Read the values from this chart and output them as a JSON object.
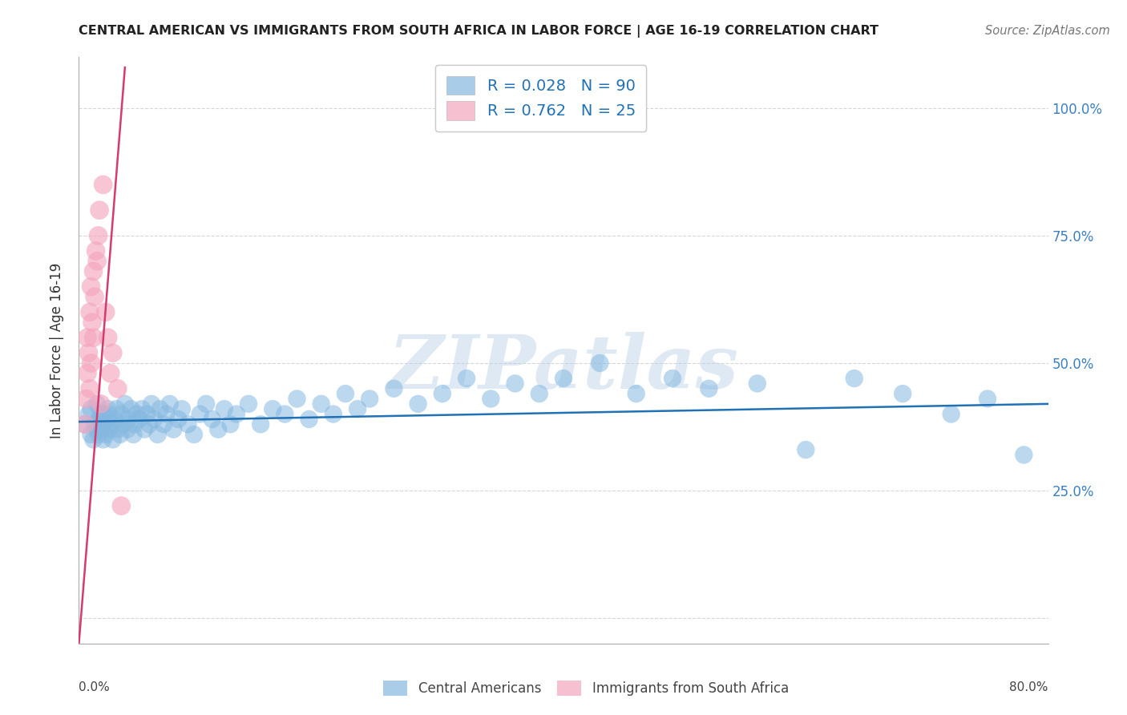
{
  "title": "CENTRAL AMERICAN VS IMMIGRANTS FROM SOUTH AFRICA IN LABOR FORCE | AGE 16-19 CORRELATION CHART",
  "source": "Source: ZipAtlas.com",
  "ylabel": "In Labor Force | Age 16-19",
  "ytick_values": [
    0.0,
    0.25,
    0.5,
    0.75,
    1.0
  ],
  "ytick_labels": [
    "",
    "25.0%",
    "50.0%",
    "75.0%",
    "100.0%"
  ],
  "xlim": [
    0.0,
    0.8
  ],
  "ylim": [
    -0.05,
    1.1
  ],
  "blue_R": "0.028",
  "blue_N": "90",
  "pink_R": "0.762",
  "pink_N": "25",
  "blue_color": "#85b8e0",
  "pink_color": "#f4a6be",
  "blue_line_color": "#2171b5",
  "pink_line_color": "#d63a6e",
  "watermark_text": "ZIPatlas",
  "background_color": "#ffffff",
  "grid_color": "#cccccc",
  "legend_label_blue": "Central Americans",
  "legend_label_pink": "Immigrants from South Africa",
  "blue_scatter_x": [
    0.005,
    0.008,
    0.01,
    0.01,
    0.012,
    0.013,
    0.015,
    0.015,
    0.016,
    0.017,
    0.018,
    0.018,
    0.019,
    0.02,
    0.02,
    0.021,
    0.022,
    0.023,
    0.024,
    0.025,
    0.025,
    0.027,
    0.028,
    0.03,
    0.031,
    0.032,
    0.034,
    0.035,
    0.036,
    0.038,
    0.04,
    0.041,
    0.043,
    0.045,
    0.046,
    0.048,
    0.05,
    0.052,
    0.054,
    0.056,
    0.058,
    0.06,
    0.062,
    0.065,
    0.067,
    0.07,
    0.072,
    0.075,
    0.078,
    0.082,
    0.085,
    0.09,
    0.095,
    0.1,
    0.105,
    0.11,
    0.115,
    0.12,
    0.125,
    0.13,
    0.14,
    0.15,
    0.16,
    0.17,
    0.18,
    0.19,
    0.2,
    0.21,
    0.22,
    0.23,
    0.24,
    0.26,
    0.28,
    0.3,
    0.32,
    0.34,
    0.36,
    0.38,
    0.4,
    0.43,
    0.46,
    0.49,
    0.52,
    0.56,
    0.6,
    0.64,
    0.68,
    0.72,
    0.75,
    0.78
  ],
  "blue_scatter_y": [
    0.38,
    0.4,
    0.36,
    0.41,
    0.35,
    0.38,
    0.37,
    0.42,
    0.36,
    0.39,
    0.38,
    0.4,
    0.37,
    0.35,
    0.4,
    0.38,
    0.36,
    0.39,
    0.41,
    0.37,
    0.4,
    0.38,
    0.35,
    0.39,
    0.41,
    0.37,
    0.36,
    0.4,
    0.38,
    0.42,
    0.37,
    0.39,
    0.41,
    0.36,
    0.38,
    0.4,
    0.39,
    0.41,
    0.37,
    0.4,
    0.38,
    0.42,
    0.39,
    0.36,
    0.41,
    0.38,
    0.4,
    0.42,
    0.37,
    0.39,
    0.41,
    0.38,
    0.36,
    0.4,
    0.42,
    0.39,
    0.37,
    0.41,
    0.38,
    0.4,
    0.42,
    0.38,
    0.41,
    0.4,
    0.43,
    0.39,
    0.42,
    0.4,
    0.44,
    0.41,
    0.43,
    0.45,
    0.42,
    0.44,
    0.47,
    0.43,
    0.46,
    0.44,
    0.47,
    0.5,
    0.44,
    0.47,
    0.45,
    0.46,
    0.33,
    0.47,
    0.44,
    0.4,
    0.43,
    0.32
  ],
  "pink_scatter_x": [
    0.005,
    0.006,
    0.007,
    0.007,
    0.008,
    0.009,
    0.009,
    0.01,
    0.01,
    0.011,
    0.012,
    0.012,
    0.013,
    0.014,
    0.015,
    0.016,
    0.017,
    0.018,
    0.02,
    0.022,
    0.024,
    0.026,
    0.028,
    0.032,
    0.035
  ],
  "pink_scatter_y": [
    0.38,
    0.43,
    0.48,
    0.55,
    0.52,
    0.45,
    0.6,
    0.5,
    0.65,
    0.58,
    0.55,
    0.68,
    0.63,
    0.72,
    0.7,
    0.75,
    0.8,
    0.42,
    0.85,
    0.6,
    0.55,
    0.48,
    0.52,
    0.45,
    0.22
  ],
  "pink_line_x": [
    0.0,
    0.038
  ],
  "pink_line_y": [
    -0.05,
    1.08
  ],
  "blue_line_x": [
    0.0,
    0.8
  ],
  "blue_line_y": [
    0.385,
    0.42
  ]
}
